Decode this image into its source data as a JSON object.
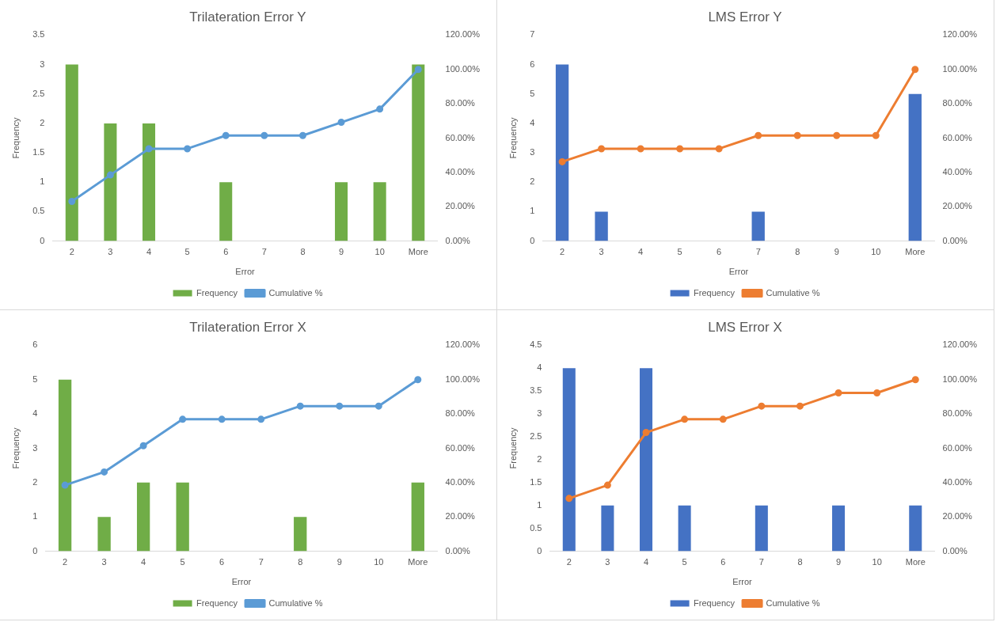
{
  "chart_data": [
    {
      "type": "bar",
      "title": "Trilateration Error Y",
      "xlabel": "Error",
      "ylabel": "Frequency",
      "categories": [
        "2",
        "3",
        "4",
        "5",
        "6",
        "7",
        "8",
        "9",
        "10",
        "More"
      ],
      "series": [
        {
          "name": "Frequency",
          "color": "#70ad47",
          "values": [
            3,
            2,
            2,
            0,
            1,
            0,
            0,
            1,
            1,
            3
          ]
        },
        {
          "name": "Cumulative %",
          "type": "line",
          "axis": "y2",
          "color": "#5b9bd5",
          "values": [
            23.1,
            38.5,
            53.8,
            53.8,
            61.5,
            61.5,
            61.5,
            69.2,
            76.9,
            100
          ]
        }
      ],
      "ylim": [
        0,
        3.5
      ],
      "yticks": [
        0,
        0.5,
        1,
        1.5,
        2,
        2.5,
        3,
        3.5
      ],
      "y2lim": [
        0,
        120
      ],
      "y2ticks": [
        {
          "value": 0,
          "label": "0.00%"
        },
        {
          "value": 20,
          "label": "20.00%"
        },
        {
          "value": 40,
          "label": "40.00%"
        },
        {
          "value": 60,
          "label": "60.00%"
        },
        {
          "value": 80,
          "label": "80.00%"
        },
        {
          "value": 100,
          "label": "100.00%"
        },
        {
          "value": 120,
          "label": "120.00%"
        }
      ],
      "grid": false,
      "legend": "bottom",
      "marker": "circle"
    },
    {
      "type": "bar",
      "title": "LMS Error Y",
      "xlabel": "Error",
      "ylabel": "Frequency",
      "categories": [
        "2",
        "3",
        "4",
        "5",
        "6",
        "7",
        "8",
        "9",
        "10",
        "More"
      ],
      "series": [
        {
          "name": "Frequency",
          "color": "#4472c4",
          "values": [
            6,
            1,
            0,
            0,
            0,
            1,
            0,
            0,
            0,
            5
          ]
        },
        {
          "name": "Cumulative %",
          "type": "line",
          "axis": "y2",
          "color": "#ed7d31",
          "values": [
            46.2,
            53.8,
            53.8,
            53.8,
            53.8,
            61.5,
            61.5,
            61.5,
            61.5,
            100
          ]
        }
      ],
      "ylim": [
        0,
        7
      ],
      "yticks": [
        0,
        1,
        2,
        3,
        4,
        5,
        6,
        7
      ],
      "y2lim": [
        0,
        120
      ],
      "y2ticks": [
        {
          "value": 0,
          "label": "0.00%"
        },
        {
          "value": 20,
          "label": "20.00%"
        },
        {
          "value": 40,
          "label": "40.00%"
        },
        {
          "value": 60,
          "label": "60.00%"
        },
        {
          "value": 80,
          "label": "80.00%"
        },
        {
          "value": 100,
          "label": "100.00%"
        },
        {
          "value": 120,
          "label": "120.00%"
        }
      ],
      "grid": false,
      "legend": "bottom",
      "marker": "circle"
    },
    {
      "type": "bar",
      "title": "Trilateration Error X",
      "xlabel": "Error",
      "ylabel": "Frequency",
      "categories": [
        "2",
        "3",
        "4",
        "5",
        "6",
        "7",
        "8",
        "9",
        "10",
        "More"
      ],
      "series": [
        {
          "name": "Frequency",
          "color": "#70ad47",
          "values": [
            5,
            1,
            2,
            2,
            0,
            0,
            1,
            0,
            0,
            2
          ]
        },
        {
          "name": "Cumulative %",
          "type": "line",
          "axis": "y2",
          "color": "#5b9bd5",
          "values": [
            38.5,
            46.2,
            61.5,
            76.9,
            76.9,
            76.9,
            84.6,
            84.6,
            84.6,
            100
          ]
        }
      ],
      "ylim": [
        0,
        6
      ],
      "yticks": [
        0,
        1,
        2,
        3,
        4,
        5,
        6
      ],
      "y2lim": [
        0,
        120
      ],
      "y2ticks": [
        {
          "value": 0,
          "label": "0.00%"
        },
        {
          "value": 20,
          "label": "20.00%"
        },
        {
          "value": 40,
          "label": "40.00%"
        },
        {
          "value": 60,
          "label": "60.00%"
        },
        {
          "value": 80,
          "label": "80.00%"
        },
        {
          "value": 100,
          "label": "100.00%"
        },
        {
          "value": 120,
          "label": "120.00%"
        }
      ],
      "grid": false,
      "legend": "bottom",
      "marker": "circle"
    },
    {
      "type": "bar",
      "title": "LMS Error X",
      "xlabel": "Error",
      "ylabel": "Frequency",
      "categories": [
        "2",
        "3",
        "4",
        "5",
        "6",
        "7",
        "8",
        "9",
        "10",
        "More"
      ],
      "series": [
        {
          "name": "Frequency",
          "color": "#4472c4",
          "values": [
            4,
            1,
            4,
            1,
            0,
            1,
            0,
            1,
            0,
            1
          ]
        },
        {
          "name": "Cumulative %",
          "type": "line",
          "axis": "y2",
          "color": "#ed7d31",
          "values": [
            30.8,
            38.5,
            69.2,
            76.9,
            76.9,
            84.6,
            84.6,
            92.3,
            92.3,
            100
          ]
        }
      ],
      "ylim": [
        0,
        4.5
      ],
      "yticks": [
        0,
        0.5,
        1,
        1.5,
        2,
        2.5,
        3,
        3.5,
        4,
        4.5
      ],
      "y2lim": [
        0,
        120
      ],
      "y2ticks": [
        {
          "value": 0,
          "label": "0.00%"
        },
        {
          "value": 20,
          "label": "20.00%"
        },
        {
          "value": 40,
          "label": "40.00%"
        },
        {
          "value": 60,
          "label": "60.00%"
        },
        {
          "value": 80,
          "label": "80.00%"
        },
        {
          "value": 100,
          "label": "100.00%"
        },
        {
          "value": 120,
          "label": "120.00%"
        }
      ],
      "grid": false,
      "legend": "bottom",
      "marker": "circle"
    }
  ]
}
